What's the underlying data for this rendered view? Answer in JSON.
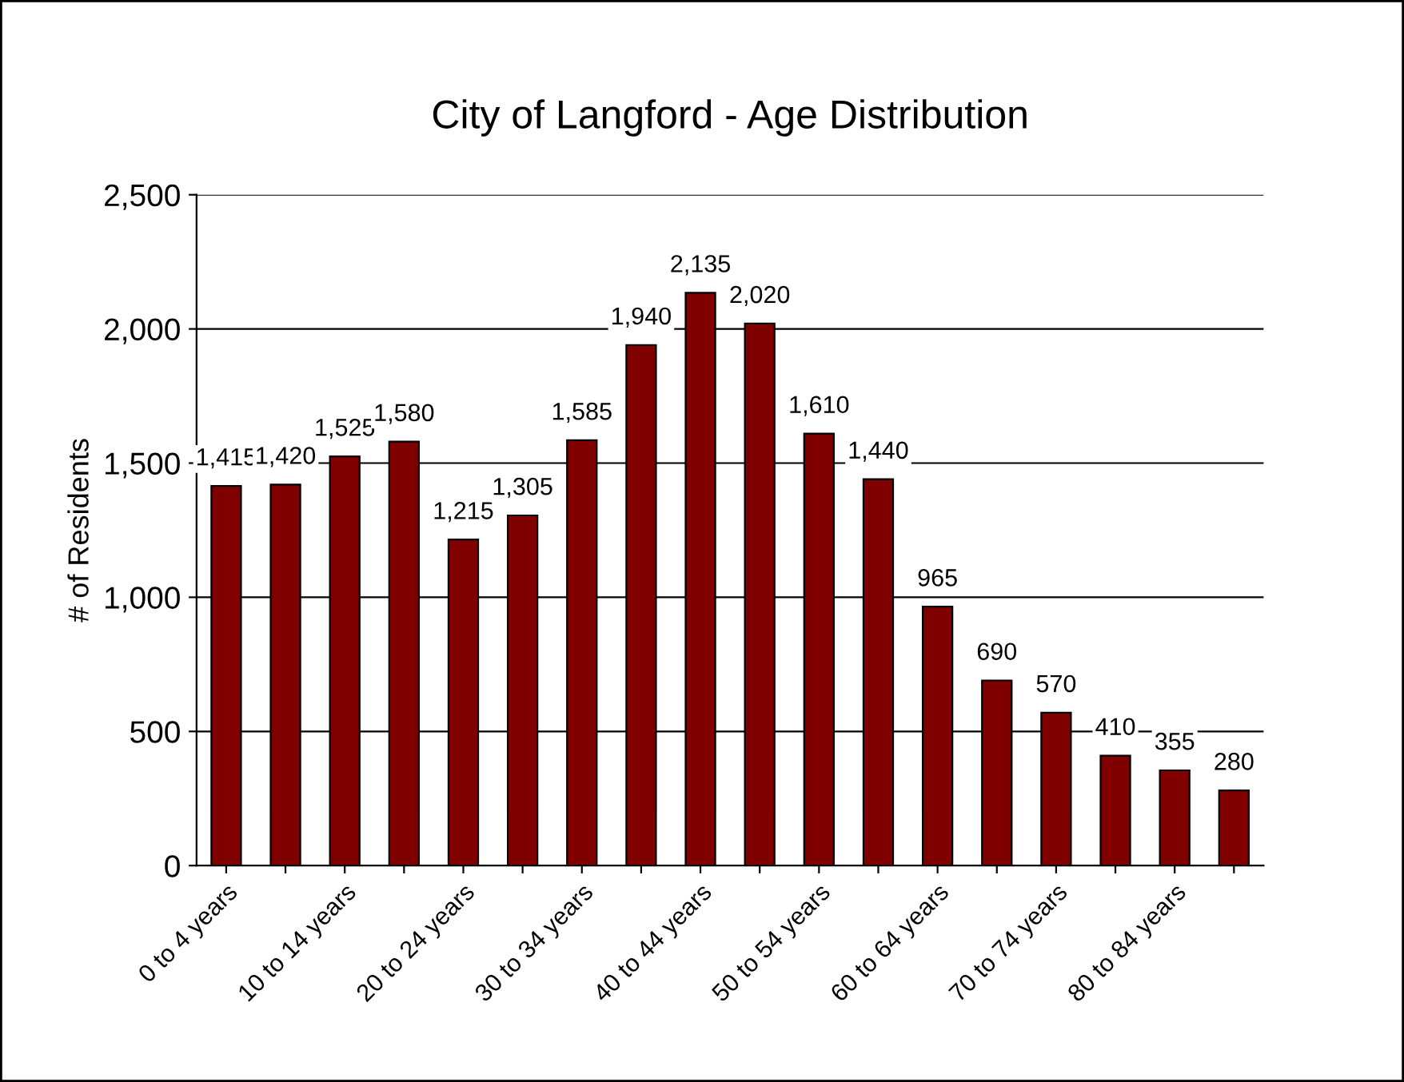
{
  "chart_data": {
    "type": "bar",
    "title": "City of Langford - Age Distribution",
    "ylabel": "# of Residents",
    "categories": [
      "0 to 4 years",
      null,
      "10 to 14 years",
      null,
      "20 to 24 years",
      null,
      "30 to 34 years",
      null,
      "40 to 44 years",
      null,
      "50 to 54 years",
      null,
      "60 to 64 years",
      null,
      "70 to 74 years",
      null,
      "80 to 84 years",
      null
    ],
    "values": [
      1415,
      1420,
      1525,
      1580,
      1215,
      1305,
      1585,
      1940,
      2135,
      2020,
      1610,
      1440,
      965,
      690,
      570,
      410,
      355,
      280
    ],
    "value_labels": [
      "1,415",
      "1,420",
      "1,525",
      "1,580",
      "1,215",
      "1,305",
      "1,585",
      "1,940",
      "2,135",
      "2,020",
      "1,610",
      "1,440",
      "965",
      "690",
      "570",
      "410",
      "355",
      "280"
    ],
    "color": "#800000",
    "ylim": [
      0,
      2500
    ],
    "yticks": [
      {
        "value": 0,
        "label": "0"
      },
      {
        "value": 500,
        "label": "500"
      },
      {
        "value": 1000,
        "label": "1,000"
      },
      {
        "value": 1500,
        "label": "1,500"
      },
      {
        "value": 2000,
        "label": "2,000"
      },
      {
        "value": 2500,
        "label": "2,500"
      }
    ],
    "grid": "y",
    "legend": false
  }
}
